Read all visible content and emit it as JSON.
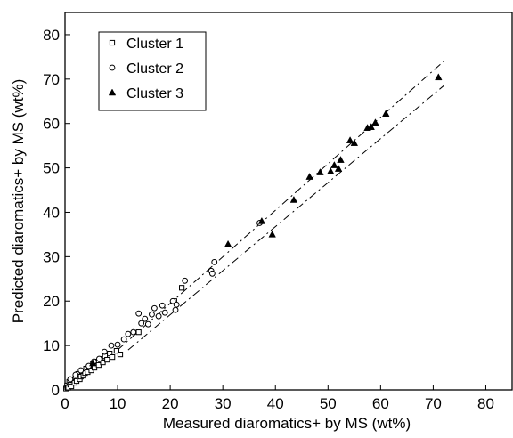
{
  "chart_data": {
    "type": "scatter",
    "xlabel": "Measured diaromatics+ by MS (wt%)",
    "ylabel": "Predicted diaromatics+ by MS (wt%)",
    "xlim": [
      0,
      85
    ],
    "ylim": [
      0,
      85
    ],
    "x_ticks": [
      0,
      10,
      20,
      30,
      40,
      50,
      60,
      70,
      80
    ],
    "y_ticks": [
      0,
      10,
      20,
      30,
      40,
      50,
      60,
      70,
      80
    ],
    "x_tick_labels": [
      "0",
      "10",
      "20",
      "30",
      "40",
      "50",
      "60",
      "70",
      "80"
    ],
    "y_tick_labels": [
      "0",
      "10",
      "20",
      "30",
      "40",
      "50",
      "60",
      "70",
      "80"
    ],
    "grid": false,
    "legend_position": "top-left",
    "series": [
      {
        "name": "Cluster 1",
        "marker": "open-square",
        "points": [
          [
            0.2,
            0.3
          ],
          [
            0.4,
            1.0
          ],
          [
            0.6,
            0.5
          ],
          [
            0.8,
            1.8
          ],
          [
            1.0,
            1.2
          ],
          [
            1.2,
            0.8
          ],
          [
            1.5,
            2.2
          ],
          [
            1.8,
            1.6
          ],
          [
            2.0,
            2.8
          ],
          [
            2.2,
            2.0
          ],
          [
            2.5,
            3.6
          ],
          [
            2.8,
            2.4
          ],
          [
            3.0,
            3.0
          ],
          [
            3.2,
            4.2
          ],
          [
            3.5,
            3.2
          ],
          [
            3.8,
            3.8
          ],
          [
            4.0,
            4.8
          ],
          [
            4.3,
            4.0
          ],
          [
            4.6,
            5.2
          ],
          [
            5.0,
            4.4
          ],
          [
            5.3,
            5.8
          ],
          [
            5.6,
            5.0
          ],
          [
            6.0,
            6.4
          ],
          [
            6.4,
            5.6
          ],
          [
            6.8,
            7.0
          ],
          [
            7.2,
            6.2
          ],
          [
            7.6,
            7.6
          ],
          [
            8.0,
            6.8
          ],
          [
            8.5,
            8.2
          ],
          [
            9.0,
            7.4
          ],
          [
            9.8,
            8.8
          ],
          [
            10.5,
            8.0
          ],
          [
            14.0,
            13.0
          ],
          [
            20.8,
            20.0
          ],
          [
            22.2,
            23.0
          ]
        ]
      },
      {
        "name": "Cluster 2",
        "marker": "open-circle",
        "points": [
          [
            1.0,
            2.4
          ],
          [
            2.0,
            3.4
          ],
          [
            3.0,
            4.4
          ],
          [
            4.5,
            5.4
          ],
          [
            5.5,
            6.4
          ],
          [
            6.5,
            7.0
          ],
          [
            7.5,
            8.6
          ],
          [
            8.8,
            10.0
          ],
          [
            10.0,
            10.2
          ],
          [
            11.2,
            11.4
          ],
          [
            12.0,
            12.6
          ],
          [
            13.0,
            13.0
          ],
          [
            14.0,
            17.2
          ],
          [
            14.5,
            15.0
          ],
          [
            15.2,
            16.0
          ],
          [
            15.8,
            14.8
          ],
          [
            16.5,
            17.0
          ],
          [
            17.0,
            18.4
          ],
          [
            17.8,
            16.6
          ],
          [
            18.5,
            19.0
          ],
          [
            19.0,
            17.4
          ],
          [
            20.5,
            20.0
          ],
          [
            21.0,
            18.0
          ],
          [
            21.2,
            19.2
          ],
          [
            22.8,
            24.6
          ],
          [
            27.8,
            26.8
          ],
          [
            28.0,
            26.2
          ],
          [
            28.4,
            28.8
          ],
          [
            37.0,
            37.6
          ]
        ]
      },
      {
        "name": "Cluster 3",
        "marker": "filled-triangle",
        "points": [
          [
            5.3,
            6.0
          ],
          [
            31.0,
            32.8
          ],
          [
            37.4,
            38.0
          ],
          [
            39.4,
            35.0
          ],
          [
            43.5,
            42.8
          ],
          [
            46.5,
            48.0
          ],
          [
            48.5,
            49.0
          ],
          [
            50.5,
            49.2
          ],
          [
            51.2,
            50.6
          ],
          [
            52.0,
            49.8
          ],
          [
            52.4,
            51.8
          ],
          [
            54.2,
            56.2
          ],
          [
            55.0,
            55.6
          ],
          [
            57.5,
            59.0
          ],
          [
            58.2,
            59.2
          ],
          [
            59.0,
            60.2
          ],
          [
            61.0,
            62.2
          ],
          [
            71.0,
            70.4
          ]
        ]
      }
    ],
    "confidence_bands": [
      {
        "style": "dash-dot",
        "points": [
          [
            10,
            9.0
          ],
          [
            72,
            74.0
          ]
        ]
      },
      {
        "style": "dash-dot",
        "points": [
          [
            12,
            9.0
          ],
          [
            72,
            68.5
          ]
        ]
      }
    ]
  }
}
